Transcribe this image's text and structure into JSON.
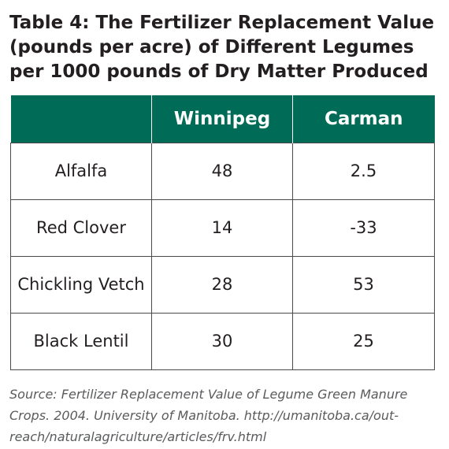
{
  "title": {
    "lines": [
      "Table 4: The Fertilizer Replacement Value",
      "(pounds per acre) of Different Legumes",
      "per 1000 pounds of Dry Matter Produced"
    ]
  },
  "table": {
    "headers": [
      "",
      "Winnipeg",
      "Carman"
    ],
    "rows": [
      {
        "legume": "Alfalfa",
        "winnipeg": "48",
        "carman": "2.5"
      },
      {
        "legume": "Red Clover",
        "winnipeg": "14",
        "carman": "-33"
      },
      {
        "legume": "Chickling Vetch",
        "winnipeg": "28",
        "carman": "53"
      },
      {
        "legume": "Black Lentil",
        "winnipeg": "30",
        "carman": "25"
      }
    ],
    "header_bg": "#006b56"
  },
  "source": {
    "lines": [
      "Source: Fertilizer Replacement Value of Legume Green Manure",
      "Crops. 2004. University of Manitoba. http://umanitoba.ca/out-",
      "reach/naturalagriculture/articles/frv.html"
    ]
  }
}
